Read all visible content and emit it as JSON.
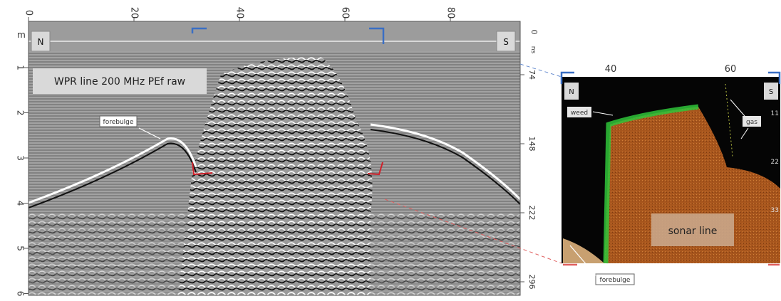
{
  "main_panel": {
    "top_axis": [
      0,
      20,
      40,
      60,
      80
    ],
    "left_axis_unit": "m",
    "left_axis": [
      1,
      2,
      3,
      4,
      5,
      6
    ],
    "right_axis_zero": 0,
    "right_axis_unit": "ns",
    "right_axis": [
      74,
      148,
      222,
      296
    ],
    "north": "N",
    "south": "S",
    "title": "WPR line 200 MHz PEf raw",
    "annotation": "forebulge"
  },
  "inset_panel": {
    "top_axis": [
      40,
      60
    ],
    "north": "N",
    "south": "S",
    "weed": "weed",
    "gas": "gas",
    "right_axis": [
      11,
      22,
      33
    ],
    "title": "sonar line",
    "annotation": "forebulge"
  }
}
